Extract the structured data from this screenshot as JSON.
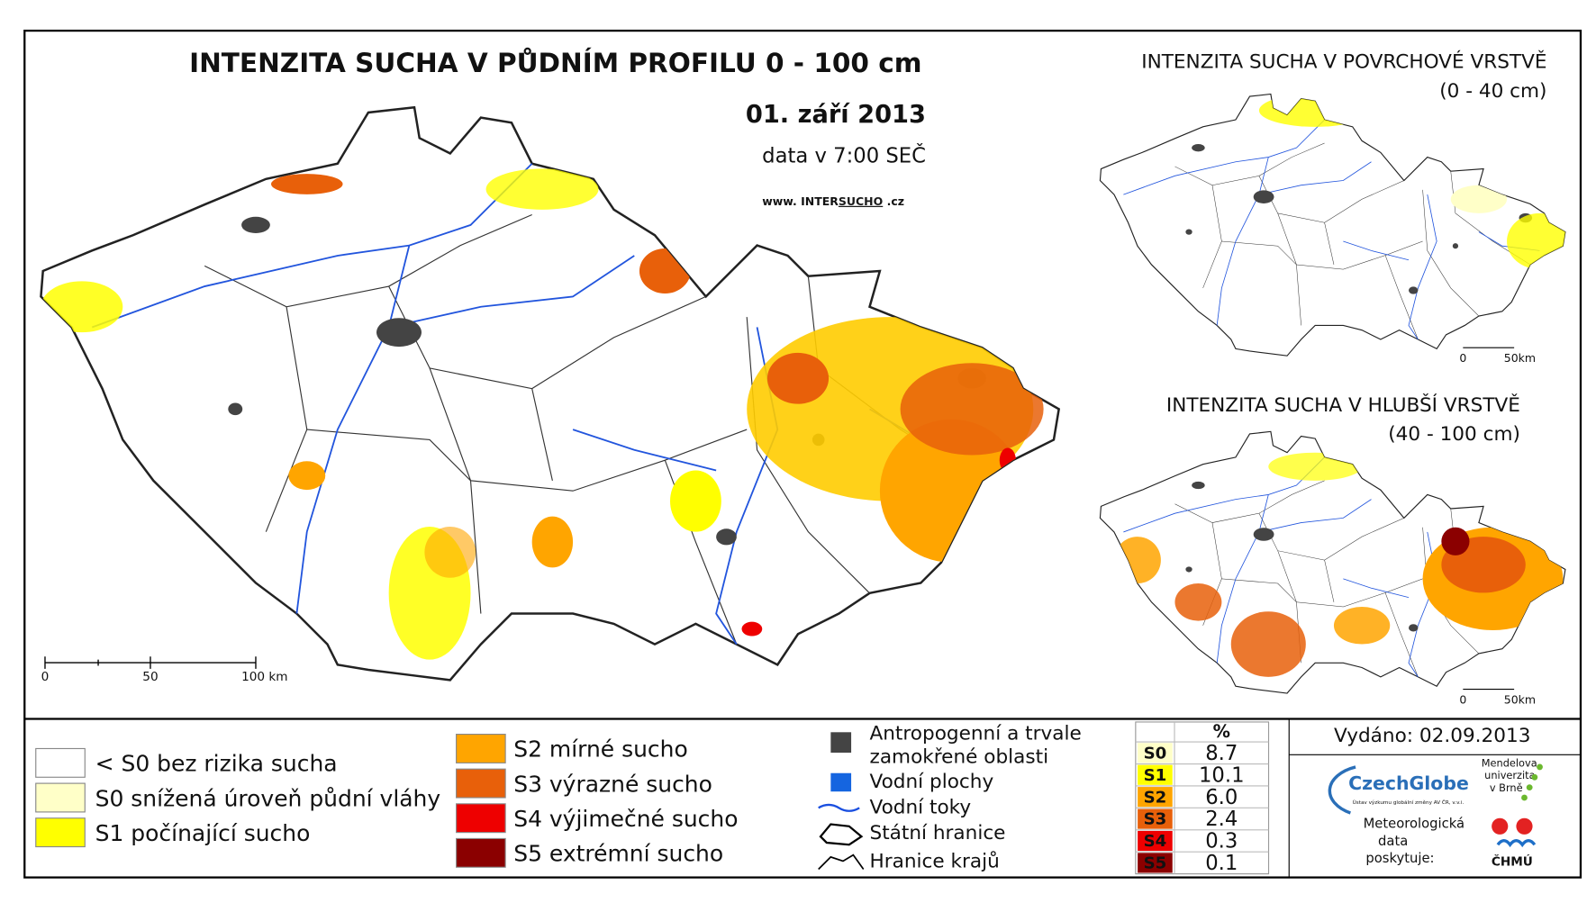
{
  "main_map": {
    "title": "INTENZITA SUCHA V PŮDNÍM PROFILU 0 - 100 cm",
    "date": "01. září 2013",
    "data_time": "data v 7:00 SEČ",
    "website": [
      "www. INTER",
      "SUCHO",
      " .cz"
    ],
    "scale": [
      "0",
      "50",
      "100 km"
    ]
  },
  "surface_map": {
    "title": "INTENZITA SUCHA V POVRCHOVÉ VRSTVĚ",
    "subtitle": "(0 - 40 cm)",
    "scale": [
      "0",
      "50km"
    ]
  },
  "deep_map": {
    "title": "INTENZITA SUCHA V HLUBŠÍ VRSTVĚ",
    "subtitle": "(40 - 100 cm)",
    "scale": [
      "0",
      "50km"
    ]
  },
  "legend": {
    "classes": [
      {
        "label": "< S0 bez rizika sucha",
        "color": "#ffffff"
      },
      {
        "label": "S0 snížená úroveň půdní vláhy",
        "color": "#ffffc8"
      },
      {
        "label": "S1 počínající sucho",
        "color": "#ffff00"
      },
      {
        "label": "S2 mírné sucho",
        "color": "#ffa500"
      },
      {
        "label": "S3 výrazné sucho",
        "color": "#e8600a"
      },
      {
        "label": "S4 výjimečné sucho",
        "color": "#ee0000"
      },
      {
        "label": "S5 extrémní sucho",
        "color": "#8b0000"
      }
    ],
    "symbols": [
      {
        "label_lines": [
          "Antropogenní a trvale",
          "zamokřené oblasti"
        ]
      },
      {
        "label_lines": [
          "Vodní plochy"
        ]
      },
      {
        "label_lines": [
          "Vodní toky"
        ]
      },
      {
        "label_lines": [
          "Státní hranice"
        ]
      },
      {
        "label_lines": [
          "Hranice krajů"
        ]
      }
    ]
  },
  "table": {
    "header": "%",
    "rows": [
      {
        "code": "S0",
        "value": "8.7"
      },
      {
        "code": "S1",
        "value": "10.1"
      },
      {
        "code": "S2",
        "value": "6.0"
      },
      {
        "code": "S3",
        "value": "2.4"
      },
      {
        "code": "S4",
        "value": "0.3"
      },
      {
        "code": "S5",
        "value": "0.1"
      }
    ]
  },
  "footer": {
    "issued": "Vydáno: 02.09.2013",
    "czechglobe": "CzechGlobe",
    "czechglobe_sub": "Ústav výzkumu globální změny AV ČR, v.v.i.",
    "mendel": [
      "Mendelova",
      "univerzita",
      "v Brně"
    ],
    "provider": [
      "Meteorologická",
      "data",
      "poskytuje:"
    ],
    "chmu": "ČHMÚ"
  }
}
